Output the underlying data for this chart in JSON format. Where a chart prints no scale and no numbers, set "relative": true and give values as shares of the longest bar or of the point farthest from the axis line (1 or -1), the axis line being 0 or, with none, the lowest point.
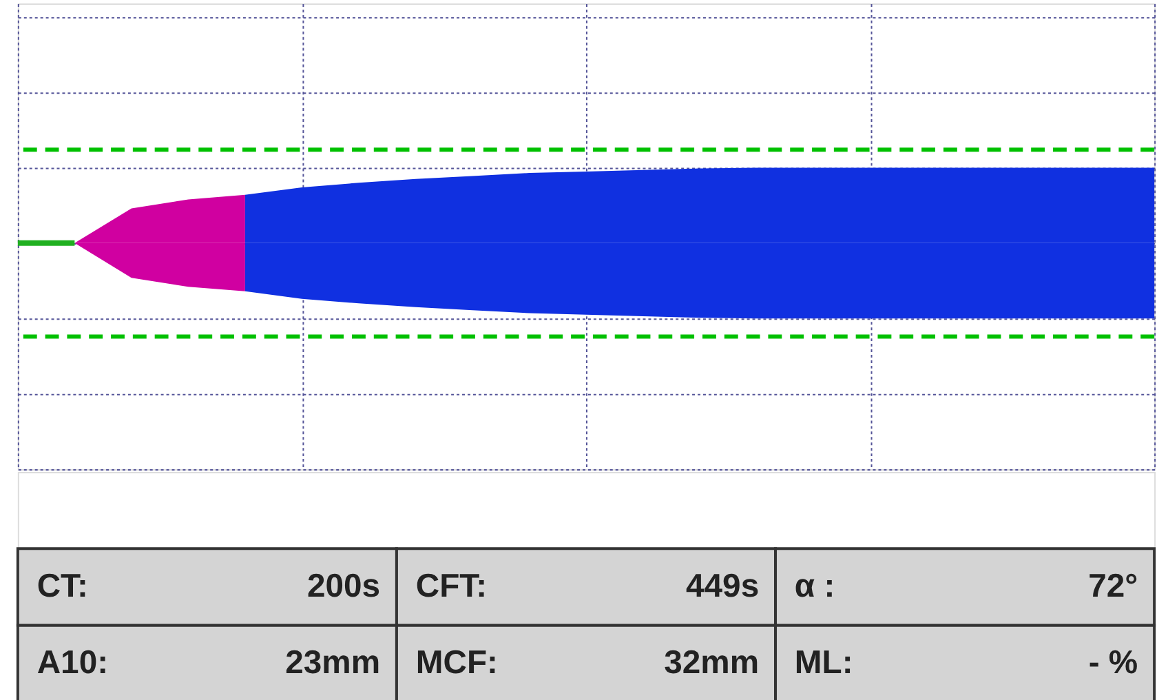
{
  "chart_data": {
    "type": "area",
    "relative": true,
    "grid": true,
    "tick_labels": false,
    "categories": [
      null,
      null,
      null,
      null,
      null,
      null,
      null,
      null,
      null,
      null,
      null,
      null,
      null,
      null,
      null,
      null,
      null,
      null,
      null,
      null,
      null
    ],
    "series": [
      {
        "type": "line",
        "color": "#20b020",
        "values": [
          0,
          0,
          null,
          null,
          null,
          null,
          null,
          null,
          null,
          null,
          null,
          null,
          null,
          null,
          null,
          null,
          null,
          null,
          null,
          null,
          null
        ]
      },
      {
        "color": "#d000a0",
        "values": [
          null,
          0,
          0.46,
          0.58,
          0.64,
          null,
          null,
          null,
          null,
          null,
          null,
          null,
          null,
          null,
          null,
          null,
          null,
          null,
          null,
          null,
          null
        ]
      },
      {
        "color": "#d000a1",
        "values": [
          null,
          0,
          -0.46,
          -0.58,
          -0.64,
          null,
          null,
          null,
          null,
          null,
          null,
          null,
          null,
          null,
          null,
          null,
          null,
          null,
          null,
          null,
          null
        ]
      },
      {
        "color": "#1030e0",
        "values": [
          null,
          null,
          null,
          null,
          0.64,
          0.74,
          0.8,
          0.85,
          0.89,
          0.93,
          0.95,
          0.97,
          0.99,
          1,
          1,
          1,
          1,
          1,
          1,
          1,
          1
        ]
      },
      {
        "color": "#1030e1",
        "values": [
          null,
          null,
          null,
          null,
          -0.64,
          -0.74,
          -0.8,
          -0.85,
          -0.89,
          -0.93,
          -0.95,
          -0.97,
          -0.99,
          -1,
          -1,
          -1,
          -1,
          -1,
          -1,
          -1,
          -1
        ]
      }
    ],
    "ref_lines": [
      {
        "axis": "y",
        "value": 1.24,
        "color": "#00c000",
        "line_style": "dashed"
      },
      {
        "axis": "y",
        "value": -1.24,
        "color": "#00c000",
        "line_style": "dashed"
      }
    ],
    "annotations": [
      "CT:",
      "200s",
      "CFT:",
      "449s",
      "α :",
      "72°",
      "A10:",
      "23mm",
      "MCF:",
      "32mm",
      "ML:",
      "- %"
    ]
  }
}
